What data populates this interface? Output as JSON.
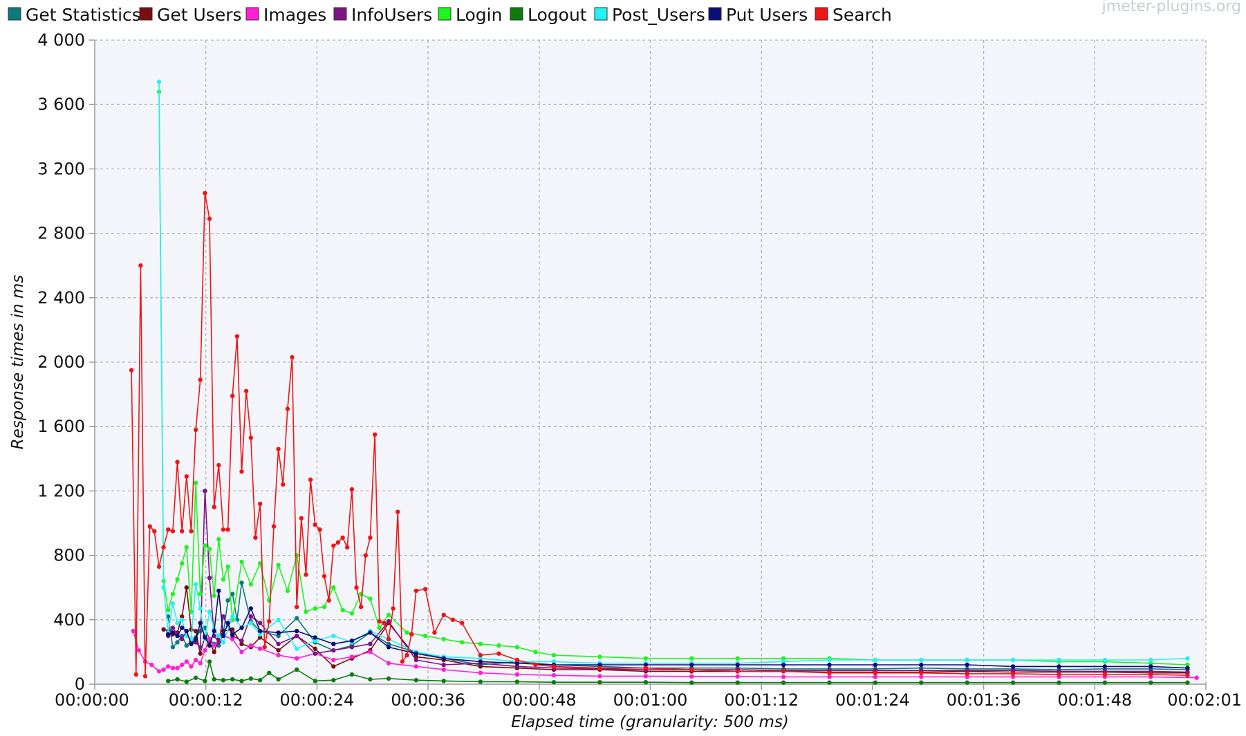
{
  "watermark": "jmeter-plugins.org",
  "chart_data": {
    "type": "line",
    "xlabel": "Elapsed time (granularity: 500 ms)",
    "ylabel": "Response times in ms",
    "x_unit": "seconds",
    "xlim": [
      0,
      121
    ],
    "ylim": [
      0,
      4000
    ],
    "x_tick_labels": [
      "00:00:00",
      "00:00:12",
      "00:00:24",
      "00:00:36",
      "00:00:48",
      "00:01:00",
      "00:01:12",
      "00:01:24",
      "00:01:36",
      "00:01:48",
      "00:02:01"
    ],
    "y_tick_labels": [
      "0",
      "400",
      "800",
      "1 200",
      "1 600",
      "2 000",
      "2 400",
      "2 800",
      "3 200",
      "3 600",
      "4 000"
    ],
    "grid": true,
    "legend_position": "top",
    "series": [
      {
        "name": "Get Statistics",
        "color": "#0d7a7d",
        "x": [
          8,
          8.5,
          9,
          9.5,
          10,
          10.5,
          11,
          11.5,
          12,
          12.5,
          13,
          13.5,
          14,
          14.5,
          15,
          15.5,
          16,
          17,
          18,
          20,
          22,
          24,
          26,
          28,
          30,
          32,
          35,
          38,
          42,
          46,
          50,
          55,
          60,
          65,
          70,
          75,
          80,
          85,
          90,
          95,
          100,
          105,
          110,
          115,
          119
        ],
        "y": [
          420,
          230,
          260,
          300,
          240,
          270,
          290,
          330,
          350,
          280,
          250,
          240,
          310,
          520,
          560,
          400,
          630,
          390,
          330,
          300,
          410,
          260,
          210,
          240,
          320,
          250,
          200,
          160,
          120,
          140,
          120,
          110,
          100,
          100,
          100,
          95,
          95,
          95,
          100,
          95,
          95,
          90,
          95,
          95,
          90
        ]
      },
      {
        "name": "Get Users",
        "color": "#7a0e0e",
        "x": [
          7.5,
          8,
          8.5,
          9,
          9.5,
          10,
          10.5,
          11,
          11.5,
          12,
          12.5,
          13,
          13.5,
          14,
          15,
          16,
          17,
          18,
          20,
          22,
          24,
          26,
          28,
          30,
          32,
          35,
          38,
          42,
          46,
          50,
          55,
          60,
          65,
          70,
          75,
          80,
          85,
          90,
          95,
          100,
          105,
          110,
          115,
          119
        ],
        "y": [
          340,
          330,
          310,
          320,
          420,
          600,
          340,
          330,
          190,
          300,
          260,
          200,
          280,
          330,
          340,
          250,
          230,
          290,
          210,
          300,
          220,
          110,
          160,
          210,
          380,
          170,
          150,
          110,
          100,
          90,
          90,
          80,
          80,
          80,
          80,
          75,
          75,
          75,
          80,
          75,
          75,
          75,
          70,
          70
        ]
      },
      {
        "name": "Images",
        "color": "#ff1fd7",
        "x": [
          4.2,
          4.8,
          5.5,
          6.2,
          7,
          7.5,
          8,
          8.5,
          9,
          9.5,
          10,
          10.5,
          11,
          11.5,
          12,
          12.5,
          13,
          13.5,
          14,
          15,
          16,
          17,
          18,
          20,
          22,
          24,
          26,
          28,
          30,
          32,
          35,
          38,
          42,
          46,
          50,
          55,
          60,
          65,
          70,
          75,
          80,
          85,
          90,
          95,
          100,
          105,
          110,
          115,
          120
        ],
        "y": [
          330,
          210,
          140,
          120,
          80,
          90,
          110,
          100,
          100,
          120,
          140,
          110,
          150,
          130,
          210,
          280,
          240,
          260,
          300,
          280,
          200,
          240,
          220,
          180,
          160,
          190,
          150,
          170,
          200,
          130,
          110,
          90,
          70,
          60,
          55,
          50,
          50,
          48,
          48,
          45,
          45,
          45,
          45,
          45,
          45,
          45,
          45,
          45,
          40
        ]
      },
      {
        "name": "InfoUsers",
        "color": "#7f1285",
        "x": [
          8,
          8.5,
          9,
          9.5,
          10,
          10.5,
          11,
          11.5,
          12,
          12.5,
          13,
          13.5,
          14,
          15,
          16,
          17,
          18,
          20,
          22,
          24,
          26,
          28,
          30,
          32,
          35,
          38,
          42,
          46,
          50,
          55,
          60,
          65,
          70,
          75,
          80,
          85,
          90,
          95,
          100,
          105,
          110,
          115,
          119
        ],
        "y": [
          300,
          350,
          310,
          280,
          330,
          250,
          260,
          230,
          1200,
          660,
          300,
          260,
          420,
          300,
          270,
          420,
          380,
          250,
          300,
          190,
          210,
          230,
          250,
          390,
          150,
          120,
          130,
          110,
          100,
          95,
          90,
          90,
          90,
          85,
          85,
          85,
          85,
          85,
          85,
          80,
          80,
          80,
          75
        ]
      },
      {
        "name": "Login",
        "color": "#1ef51e",
        "x": [
          7,
          7.5,
          8,
          8.5,
          9,
          9.5,
          10,
          10.5,
          11,
          11.5,
          12,
          12.5,
          13,
          13.5,
          14,
          14.5,
          15,
          16,
          17,
          18,
          19,
          20,
          21,
          22,
          23,
          24,
          25,
          26,
          27,
          28,
          29,
          30,
          31,
          32,
          34,
          36,
          38,
          40,
          42,
          44,
          46,
          48,
          50,
          55,
          60,
          65,
          70,
          75,
          80,
          85,
          90,
          95,
          100,
          105,
          110,
          115,
          119
        ],
        "y": [
          3680,
          640,
          460,
          560,
          650,
          750,
          850,
          450,
          1250,
          560,
          860,
          840,
          550,
          900,
          650,
          730,
          400,
          760,
          620,
          750,
          520,
          740,
          580,
          800,
          450,
          470,
          480,
          600,
          460,
          440,
          560,
          530,
          350,
          430,
          320,
          300,
          280,
          260,
          250,
          240,
          230,
          200,
          180,
          170,
          160,
          160,
          160,
          160,
          160,
          150,
          150,
          150,
          150,
          140,
          140,
          130,
          120
        ]
      },
      {
        "name": "Logout",
        "color": "#0c7d0c",
        "x": [
          8,
          9,
          10,
          11,
          12,
          12.5,
          13,
          14,
          15,
          16,
          17,
          18,
          19,
          20,
          22,
          24,
          26,
          28,
          30,
          32,
          35,
          38,
          42,
          46,
          50,
          55,
          60,
          65,
          70,
          75,
          80,
          85,
          90,
          95,
          100,
          105,
          110,
          115,
          119
        ],
        "y": [
          20,
          30,
          15,
          40,
          20,
          140,
          30,
          25,
          30,
          20,
          35,
          25,
          70,
          30,
          90,
          20,
          25,
          60,
          30,
          35,
          25,
          20,
          15,
          15,
          12,
          12,
          12,
          10,
          10,
          10,
          10,
          10,
          10,
          10,
          10,
          10,
          10,
          10,
          10
        ]
      },
      {
        "name": "Post_Users",
        "color": "#22f2f2",
        "x": [
          7,
          7.5,
          8,
          8.5,
          9,
          9.5,
          10,
          10.5,
          11,
          11.5,
          12,
          12.5,
          13,
          13.5,
          14,
          15,
          16,
          17,
          18,
          20,
          22,
          24,
          26,
          28,
          30,
          32,
          35,
          38,
          42,
          46,
          50,
          55,
          60,
          65,
          70,
          75,
          80,
          85,
          90,
          95,
          100,
          105,
          110,
          115,
          119
        ],
        "y": [
          3740,
          600,
          320,
          500,
          380,
          400,
          300,
          280,
          620,
          470,
          280,
          450,
          340,
          300,
          260,
          420,
          350,
          380,
          310,
          400,
          220,
          270,
          300,
          260,
          330,
          280,
          200,
          170,
          160,
          140,
          140,
          130,
          130,
          130,
          130,
          140,
          150,
          150,
          150,
          150,
          150,
          150,
          150,
          150,
          160
        ]
      },
      {
        "name": "Put Users",
        "color": "#0c0c7a",
        "x": [
          8,
          8.5,
          9,
          9.5,
          10,
          10.5,
          11,
          11.5,
          12,
          12.5,
          13,
          13.5,
          14,
          14.5,
          15,
          16,
          17,
          18,
          20,
          22,
          24,
          26,
          28,
          30,
          32,
          35,
          38,
          42,
          46,
          50,
          55,
          60,
          65,
          70,
          75,
          80,
          85,
          90,
          95,
          100,
          105,
          110,
          115,
          119
        ],
        "y": [
          310,
          320,
          300,
          350,
          330,
          250,
          280,
          380,
          290,
          240,
          330,
          580,
          300,
          380,
          310,
          350,
          470,
          330,
          320,
          330,
          290,
          250,
          270,
          320,
          230,
          190,
          160,
          140,
          130,
          120,
          120,
          120,
          120,
          120,
          120,
          120,
          120,
          120,
          120,
          110,
          110,
          110,
          110,
          100
        ]
      },
      {
        "name": "Search",
        "color": "#f01414",
        "x": [
          4,
          4.5,
          5,
          5.5,
          6,
          6.5,
          7,
          7.5,
          8,
          8.5,
          9,
          9.5,
          10,
          10.5,
          11,
          11.5,
          12,
          12.5,
          13,
          13.5,
          14,
          14.5,
          15,
          15.5,
          16,
          16.5,
          17,
          17.5,
          18,
          18.5,
          19,
          19.5,
          20,
          20.5,
          21,
          21.5,
          22,
          22.5,
          23,
          23.5,
          24,
          24.5,
          25,
          25.5,
          26,
          26.5,
          27,
          27.5,
          28,
          28.5,
          29,
          29.5,
          30,
          30.5,
          31,
          31.5,
          32,
          32.5,
          33,
          33.5,
          34,
          34.5,
          35,
          36,
          37,
          38,
          39,
          40,
          42,
          44,
          46,
          48,
          50,
          55,
          60,
          65,
          70,
          75,
          80,
          85,
          90,
          95,
          100,
          105,
          110,
          115,
          119
        ],
        "y": [
          1950,
          60,
          2600,
          50,
          980,
          950,
          730,
          850,
          960,
          950,
          1380,
          950,
          1290,
          950,
          1580,
          1890,
          3050,
          2890,
          1100,
          1360,
          960,
          960,
          1790,
          2160,
          1320,
          1820,
          1530,
          910,
          1120,
          230,
          390,
          980,
          1460,
          1240,
          1710,
          2030,
          480,
          1030,
          680,
          1270,
          990,
          960,
          670,
          520,
          860,
          880,
          910,
          850,
          1210,
          600,
          480,
          800,
          910,
          1550,
          390,
          380,
          280,
          470,
          1070,
          140,
          180,
          310,
          580,
          590,
          320,
          430,
          400,
          380,
          180,
          190,
          150,
          120,
          110,
          100,
          100,
          90,
          80,
          80,
          70,
          70,
          70,
          65,
          65,
          60,
          60,
          60,
          55
        ]
      }
    ]
  }
}
